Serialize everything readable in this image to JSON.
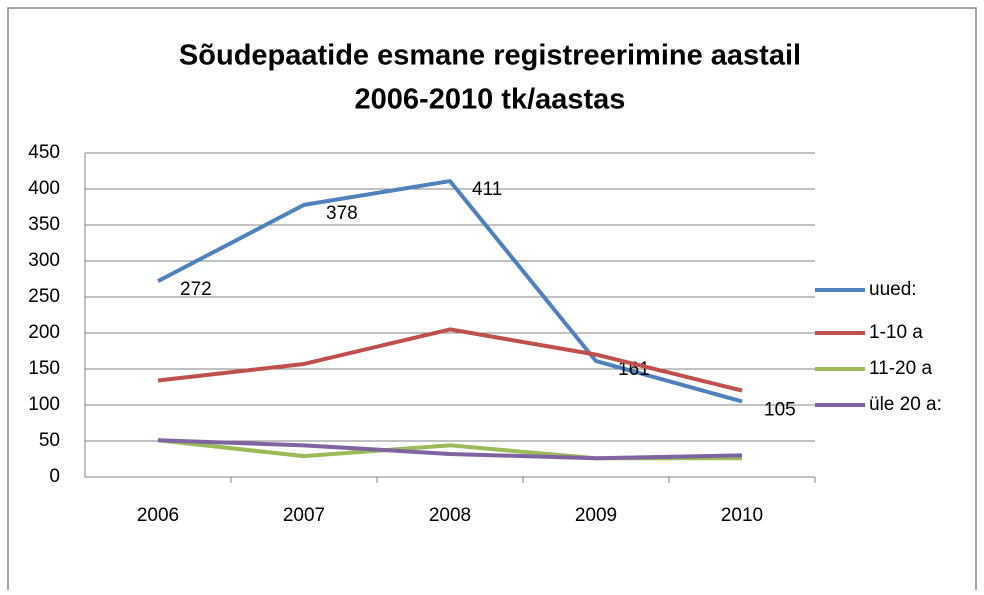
{
  "chart_data": {
    "type": "line",
    "title": [
      "Sõudepaatide esmane registreerimine  aastail",
      "2006-2010 tk/aastas"
    ],
    "categories": [
      "2006",
      "2007",
      "2008",
      "2009",
      "2010"
    ],
    "series": [
      {
        "name": "uued:",
        "color": "#4f81bd",
        "values": [
          272,
          378,
          411,
          161,
          105
        ],
        "data_labels": true
      },
      {
        "name": "1-10 a",
        "color": "#c0504d",
        "values": [
          134,
          157,
          205,
          170,
          120
        ]
      },
      {
        "name": "11-20 a",
        "color": "#9bbb59",
        "values": [
          51,
          29,
          44,
          26,
          26
        ]
      },
      {
        "name": "üle 20 a:",
        "color": "#8064a2",
        "values": [
          51,
          44,
          32,
          26,
          30
        ]
      }
    ],
    "ylim": [
      0,
      450
    ],
    "yticks": [
      0,
      50,
      100,
      150,
      200,
      250,
      300,
      350,
      400,
      450
    ],
    "grid": true,
    "legend": "right"
  }
}
